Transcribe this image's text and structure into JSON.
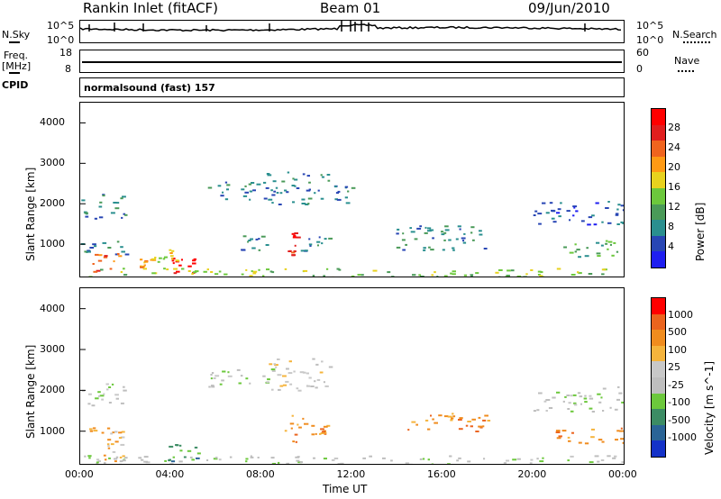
{
  "header": {
    "station": "Rankin Inlet (fitACF)",
    "beam": "Beam 01",
    "date": "09/Jun/2010"
  },
  "summary": {
    "nsky_label": "N.Sky",
    "nsearch_label": "N.Search",
    "freq_label_top": "Freq.",
    "freq_label_unit": "[MHz]",
    "nave_label": "Nave",
    "cpid_label": "CPID",
    "cpid_text": "normalsound (fast) 157",
    "noise_ticks_left": [
      "10^5",
      "10^0"
    ],
    "noise_ticks_right": [
      "10^5",
      "10^0"
    ],
    "freq_ticks_left": [
      "18",
      "8"
    ],
    "nave_ticks_right": [
      "60",
      "0"
    ]
  },
  "colors": {
    "power_scale": [
      "#1e1ef0",
      "#2846b4",
      "#2a8f8f",
      "#4a9a58",
      "#6cc83c",
      "#e8d21e",
      "#ff9a14",
      "#f0641e",
      "#e11e1e",
      "#ff0000"
    ],
    "velocity_scale": [
      "#1432c8",
      "#2a6496",
      "#3c8c64",
      "#6cc83c",
      "#bebebe",
      "#c8c8c8",
      "#f5b43c",
      "#f08c1e",
      "#eb641e",
      "#ff0000"
    ]
  },
  "chart_data": [
    {
      "type": "heatmap",
      "panel": "power",
      "xlabel": "",
      "ylabel": "Slant Range [km]",
      "x_ticks": [
        "00:00",
        "04:00",
        "08:00",
        "12:00",
        "16:00",
        "20:00",
        "00:00"
      ],
      "xlim": [
        0,
        24
      ],
      "ylim": [
        200,
        4500
      ],
      "y_ticks": [
        1000,
        2000,
        3000,
        4000
      ],
      "colorbar_label": "Power [dB]",
      "colorbar_ticks": [
        "28",
        "24",
        "20",
        "16",
        "12",
        "8",
        "4"
      ],
      "scatter_regions": [
        {
          "t0": 0.0,
          "t1": 2.0,
          "r0": 1650,
          "r1": 2250,
          "level": 2
        },
        {
          "t0": 0.0,
          "t1": 2.2,
          "r0": 700,
          "r1": 1100,
          "level": 2
        },
        {
          "t0": 0.5,
          "t1": 1.8,
          "r0": 300,
          "r1": 800,
          "level": 7
        },
        {
          "t0": 2.6,
          "t1": 3.2,
          "r0": 450,
          "r1": 700,
          "level": 6
        },
        {
          "t0": 3.8,
          "t1": 5.2,
          "r0": 200,
          "r1": 750,
          "level": 9
        },
        {
          "t0": 3.2,
          "t1": 4.5,
          "r0": 500,
          "r1": 900,
          "level": 5
        },
        {
          "t0": 5.5,
          "t1": 8.6,
          "r0": 2100,
          "r1": 2550,
          "level": 2
        },
        {
          "t0": 7.0,
          "t1": 8.2,
          "r0": 800,
          "r1": 1250,
          "level": 2
        },
        {
          "t0": 8.2,
          "t1": 11.0,
          "r0": 2000,
          "r1": 2800,
          "level": 2
        },
        {
          "t0": 9.0,
          "t1": 9.6,
          "r0": 750,
          "r1": 1400,
          "level": 8
        },
        {
          "t0": 9.6,
          "t1": 11.0,
          "r0": 850,
          "r1": 1200,
          "level": 2
        },
        {
          "t0": 11.2,
          "t1": 12.0,
          "r0": 2000,
          "r1": 2500,
          "level": 2
        },
        {
          "t0": 13.8,
          "t1": 18.0,
          "r0": 850,
          "r1": 1500,
          "level": 2
        },
        {
          "t0": 20.0,
          "t1": 24.0,
          "r0": 1500,
          "r1": 2100,
          "level": 1
        },
        {
          "t0": 21.0,
          "t1": 24.0,
          "r0": 700,
          "r1": 1100,
          "level": 3
        },
        {
          "t0": 0.0,
          "t1": 24.0,
          "r0": 200,
          "r1": 420,
          "level": 4
        }
      ]
    },
    {
      "type": "heatmap",
      "panel": "velocity",
      "xlabel": "Time UT",
      "ylabel": "Slant Range [km]",
      "x_ticks": [
        "00:00",
        "04:00",
        "08:00",
        "12:00",
        "16:00",
        "20:00",
        "00:00"
      ],
      "xlim": [
        0,
        24
      ],
      "ylim": [
        200,
        4500
      ],
      "y_ticks": [
        1000,
        2000,
        3000,
        4000
      ],
      "colorbar_label": "Velocity [m s^-1]",
      "colorbar_ticks": [
        "1000",
        "500",
        "100",
        "25",
        "-25",
        "-100",
        "-500",
        "-1000"
      ],
      "scatter_regions": [
        {
          "t0": 0.0,
          "t1": 2.0,
          "r0": 1650,
          "r1": 2250,
          "level": 4
        },
        {
          "t0": 0.0,
          "t1": 2.2,
          "r0": 700,
          "r1": 1100,
          "level": 6
        },
        {
          "t0": 1.0,
          "t1": 2.0,
          "r0": 200,
          "r1": 800,
          "level": 6
        },
        {
          "t0": 3.8,
          "t1": 5.2,
          "r0": 200,
          "r1": 750,
          "level": 2
        },
        {
          "t0": 5.5,
          "t1": 8.6,
          "r0": 2100,
          "r1": 2550,
          "level": 4
        },
        {
          "t0": 8.2,
          "t1": 11.0,
          "r0": 2000,
          "r1": 2800,
          "level": 5
        },
        {
          "t0": 9.0,
          "t1": 10.0,
          "r0": 750,
          "r1": 1400,
          "level": 7
        },
        {
          "t0": 10.0,
          "t1": 11.0,
          "r0": 850,
          "r1": 1200,
          "level": 7
        },
        {
          "t0": 14.0,
          "t1": 18.0,
          "r0": 1000,
          "r1": 1450,
          "level": 7
        },
        {
          "t0": 20.0,
          "t1": 24.0,
          "r0": 1500,
          "r1": 2100,
          "level": 4
        },
        {
          "t0": 21.0,
          "t1": 24.0,
          "r0": 700,
          "r1": 1100,
          "level": 7
        },
        {
          "t0": 0.0,
          "t1": 24.0,
          "r0": 200,
          "r1": 420,
          "level": 4
        }
      ]
    }
  ]
}
